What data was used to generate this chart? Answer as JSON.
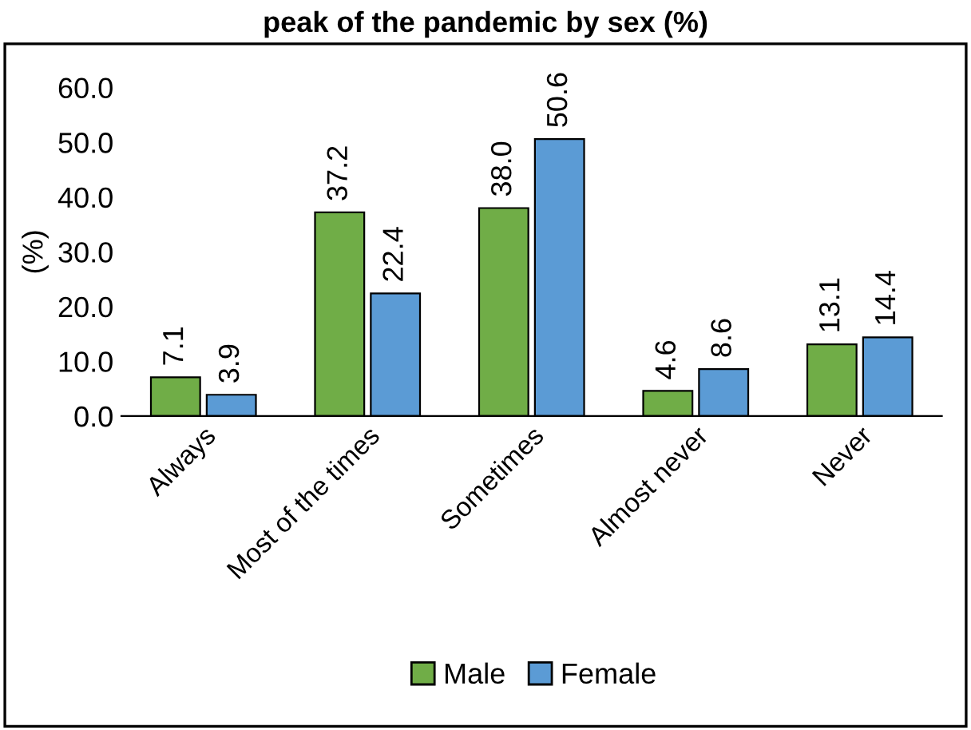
{
  "chart_data": {
    "type": "bar",
    "title": "peak of the pandemic by sex (%)",
    "ylabel": "(%)",
    "categories": [
      "Always",
      "Most of the times",
      "Sometimes",
      "Almost never",
      "Never"
    ],
    "series": [
      {
        "name": "Male",
        "color": "#70ad47",
        "values": [
          7.1,
          37.2,
          38.0,
          4.6,
          13.1
        ],
        "value_labels": [
          "7.1",
          "37.2",
          "38.0",
          "4.6",
          "13.1"
        ]
      },
      {
        "name": "Female",
        "color": "#5b9bd5",
        "values": [
          3.9,
          22.4,
          50.6,
          8.6,
          14.4
        ],
        "value_labels": [
          "3.9",
          "22.4",
          "50.6",
          "8.6",
          "14.4"
        ]
      }
    ],
    "ylim": [
      0,
      60
    ],
    "yticks": [
      {
        "value": 0,
        "label": "0.0"
      },
      {
        "value": 10,
        "label": "10.0"
      },
      {
        "value": 20,
        "label": "20.0"
      },
      {
        "value": 30,
        "label": "30.0"
      },
      {
        "value": 40,
        "label": "40.0"
      },
      {
        "value": 50,
        "label": "50.0"
      },
      {
        "value": 60,
        "label": "60.0"
      }
    ],
    "grid": false,
    "legend": "bottom"
  }
}
